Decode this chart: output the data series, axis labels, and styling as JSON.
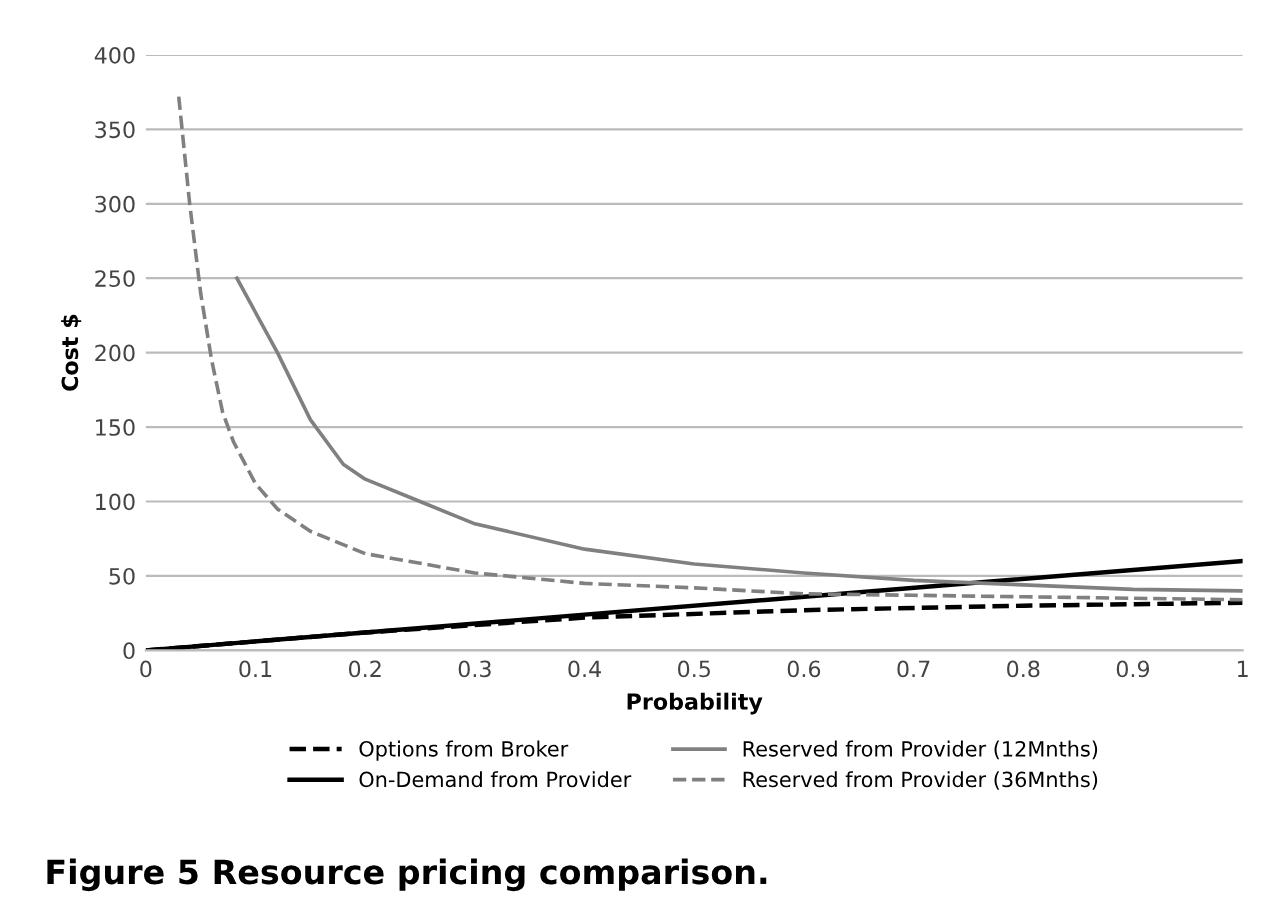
{
  "chart_data": {
    "type": "line",
    "xlabel": "Probability",
    "ylabel": "Cost $",
    "xlim": [
      0,
      1
    ],
    "xticks": [
      0,
      0.1,
      0.2,
      0.3,
      0.4,
      0.5,
      0.6,
      0.7,
      0.8,
      0.9,
      1
    ],
    "ylim": [
      0,
      400
    ],
    "yticks": [
      0,
      50,
      100,
      150,
      200,
      250,
      300,
      350,
      400
    ],
    "grid": "y",
    "legend": "bottom",
    "marker": "none",
    "annotations": [
      "Figure 5 Resource pricing comparison."
    ],
    "series": [
      {
        "name": "Options from Broker",
        "color": "#000000",
        "line_style": "dashed",
        "x": [
          0,
          0.2,
          0.4,
          0.6,
          0.8,
          1
        ],
        "values": [
          0,
          12,
          22,
          27,
          30,
          32
        ]
      },
      {
        "name": "On-Demand from Provider",
        "color": "#000000",
        "line_style": "solid",
        "x": [
          0,
          1
        ],
        "values": [
          0,
          60
        ]
      },
      {
        "name": "Reserved from Provider (12Mnths)",
        "color": "#808080",
        "line_style": "solid",
        "x": [
          0.083,
          0.12,
          0.15,
          0.18,
          0.2,
          0.25,
          0.3,
          0.4,
          0.5,
          0.6,
          0.7,
          0.8,
          0.9,
          1
        ],
        "values": [
          250,
          200,
          155,
          125,
          115,
          100,
          85,
          68,
          58,
          52,
          47,
          44,
          41,
          40
        ]
      },
      {
        "name": "Reserved from Provider (36Mnths)",
        "color": "#808080",
        "line_style": "dashed",
        "x": [
          0.03,
          0.04,
          0.05,
          0.06,
          0.07,
          0.08,
          0.1,
          0.12,
          0.15,
          0.2,
          0.3,
          0.4,
          0.5,
          0.6,
          0.7,
          0.8,
          0.9,
          1
        ],
        "values": [
          372,
          300,
          240,
          195,
          160,
          140,
          112,
          95,
          80,
          65,
          52,
          45,
          42,
          38,
          37,
          36,
          35,
          34
        ]
      }
    ]
  }
}
